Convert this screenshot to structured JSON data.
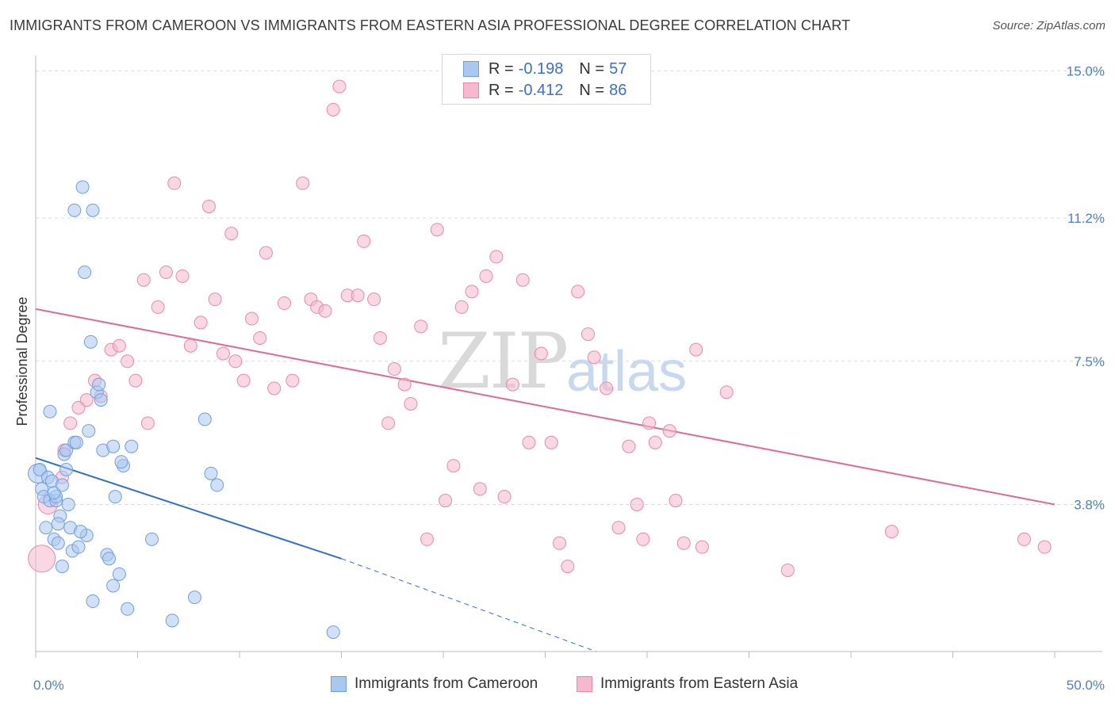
{
  "title": "IMMIGRANTS FROM CAMEROON VS IMMIGRANTS FROM EASTERN ASIA PROFESSIONAL DEGREE CORRELATION CHART",
  "source": "Source: ZipAtlas.com",
  "watermark": {
    "zip": "ZIP",
    "atlas": "atlas"
  },
  "legend": {
    "rows": [
      {
        "r_label": "R =",
        "r_value": "-0.198",
        "n_label": "N =",
        "n_value": "57"
      },
      {
        "r_label": "R =",
        "r_value": "-0.412",
        "n_label": "N =",
        "n_value": "86"
      }
    ]
  },
  "bottom_legend": {
    "cameroon": "Immigrants from Cameroon",
    "eastern_asia": "Immigrants from Eastern Asia"
  },
  "colors": {
    "cameroon_fill": "#a9c8f0",
    "cameroon_stroke": "#6f9fe0",
    "cameroon_line": "#2d6fd1",
    "eastern_asia_fill": "#f5b8cc",
    "eastern_asia_stroke": "#e98aa8",
    "eastern_asia_line": "#e06a94",
    "tick_label": "#4a7fd0"
  },
  "chart_data": {
    "type": "scatter",
    "title": "IMMIGRANTS FROM CAMEROON VS IMMIGRANTS FROM EASTERN ASIA PROFESSIONAL DEGREE CORRELATION CHART",
    "xlabel": "",
    "ylabel": "Professional Degree",
    "xlim": [
      0,
      50
    ],
    "ylim": [
      0,
      15.4
    ],
    "x_tick_labels": [
      "0.0%",
      "50.0%"
    ],
    "y_ticks": [
      3.8,
      7.5,
      11.2,
      15.0
    ],
    "y_tick_labels": [
      "3.8%",
      "7.5%",
      "11.2%",
      "15.0%"
    ],
    "grid": true,
    "legend_position": "top-center",
    "series": [
      {
        "name": "Immigrants from Cameroon",
        "r": -0.198,
        "n": 57,
        "trend": {
          "x0": 0,
          "y0": 5.0,
          "x1": 15,
          "y1": 2.4,
          "dashed_to_x": 27.5,
          "dashed_to_y": 0
        },
        "points": [
          [
            0.1,
            4.6,
            2
          ],
          [
            0.2,
            4.7,
            1
          ],
          [
            0.3,
            4.2,
            1
          ],
          [
            0.4,
            4.0,
            1
          ],
          [
            0.5,
            3.2,
            1
          ],
          [
            0.6,
            4.5,
            1
          ],
          [
            0.7,
            3.9,
            1
          ],
          [
            0.8,
            4.4,
            1
          ],
          [
            0.9,
            2.9,
            1
          ],
          [
            1.0,
            3.9,
            1
          ],
          [
            1.0,
            4.0,
            1
          ],
          [
            1.1,
            2.8,
            1
          ],
          [
            1.2,
            3.5,
            1
          ],
          [
            1.3,
            2.2,
            1
          ],
          [
            1.4,
            5.1,
            1
          ],
          [
            1.5,
            5.2,
            1
          ],
          [
            1.6,
            3.8,
            1
          ],
          [
            1.7,
            3.2,
            1
          ],
          [
            1.8,
            2.6,
            1
          ],
          [
            1.9,
            5.4,
            1
          ],
          [
            2.0,
            5.4,
            1
          ],
          [
            2.1,
            2.7,
            1
          ],
          [
            2.3,
            12.0,
            1
          ],
          [
            2.4,
            9.8,
            1
          ],
          [
            2.5,
            3.0,
            1
          ],
          [
            2.6,
            5.7,
            1
          ],
          [
            2.7,
            8.0,
            1
          ],
          [
            2.8,
            1.3,
            1
          ],
          [
            1.9,
            11.4,
            1
          ],
          [
            2.8,
            11.4,
            1
          ],
          [
            0.7,
            6.2,
            1
          ],
          [
            3.0,
            6.7,
            1
          ],
          [
            3.2,
            6.5,
            1
          ],
          [
            3.3,
            5.2,
            1
          ],
          [
            3.5,
            2.5,
            1
          ],
          [
            3.6,
            2.4,
            1
          ],
          [
            3.8,
            5.3,
            1
          ],
          [
            3.8,
            1.7,
            1
          ],
          [
            3.9,
            4.0,
            1
          ],
          [
            4.1,
            2.0,
            1
          ],
          [
            4.3,
            4.8,
            1
          ],
          [
            4.5,
            1.1,
            1
          ],
          [
            4.7,
            5.3,
            1
          ],
          [
            5.7,
            2.9,
            1
          ],
          [
            4.2,
            4.9,
            1
          ],
          [
            6.7,
            0.8,
            1
          ],
          [
            7.8,
            1.4,
            1
          ],
          [
            8.3,
            6.0,
            1
          ],
          [
            8.6,
            4.6,
            1
          ],
          [
            8.9,
            4.3,
            1
          ],
          [
            14.6,
            0.5,
            1
          ],
          [
            3.1,
            6.9,
            1
          ],
          [
            1.5,
            4.7,
            1
          ],
          [
            0.9,
            4.1,
            1
          ],
          [
            2.2,
            3.1,
            1
          ],
          [
            1.1,
            3.3,
            1
          ],
          [
            1.3,
            4.3,
            1
          ]
        ]
      },
      {
        "name": "Immigrants from Eastern Asia",
        "r": -0.412,
        "n": 86,
        "trend": {
          "x0": 0,
          "y0": 8.85,
          "x1": 50,
          "y1": 3.8
        },
        "points": [
          [
            0.3,
            2.4,
            3
          ],
          [
            0.6,
            3.8,
            2
          ],
          [
            1.3,
            4.5,
            1
          ],
          [
            1.4,
            5.2,
            1
          ],
          [
            1.7,
            5.9,
            1
          ],
          [
            2.1,
            6.3,
            1
          ],
          [
            2.5,
            6.5,
            1
          ],
          [
            2.9,
            7.0,
            1
          ],
          [
            3.2,
            6.6,
            1
          ],
          [
            3.7,
            7.8,
            1
          ],
          [
            4.1,
            7.9,
            1
          ],
          [
            4.5,
            7.5,
            1
          ],
          [
            4.9,
            7.0,
            1
          ],
          [
            5.3,
            9.6,
            1
          ],
          [
            5.5,
            5.9,
            1
          ],
          [
            6.0,
            8.9,
            1
          ],
          [
            6.4,
            9.8,
            1
          ],
          [
            6.8,
            12.1,
            1
          ],
          [
            7.2,
            9.7,
            1
          ],
          [
            7.6,
            7.9,
            1
          ],
          [
            8.1,
            8.5,
            1
          ],
          [
            8.5,
            11.5,
            1
          ],
          [
            8.8,
            9.1,
            1
          ],
          [
            9.2,
            7.7,
            1
          ],
          [
            9.6,
            10.8,
            1
          ],
          [
            9.8,
            7.5,
            1
          ],
          [
            10.2,
            7.0,
            1
          ],
          [
            10.6,
            8.6,
            1
          ],
          [
            11.0,
            8.1,
            1
          ],
          [
            11.3,
            10.3,
            1
          ],
          [
            11.7,
            6.8,
            1
          ],
          [
            12.2,
            9.0,
            1
          ],
          [
            12.6,
            7.0,
            1
          ],
          [
            13.1,
            12.1,
            1
          ],
          [
            13.5,
            9.1,
            1
          ],
          [
            13.8,
            8.9,
            1
          ],
          [
            14.2,
            8.8,
            1
          ],
          [
            14.6,
            14.0,
            1
          ],
          [
            14.9,
            14.6,
            1
          ],
          [
            15.3,
            9.2,
            1
          ],
          [
            15.8,
            9.2,
            1
          ],
          [
            16.1,
            10.6,
            1
          ],
          [
            16.6,
            9.1,
            1
          ],
          [
            16.9,
            8.1,
            1
          ],
          [
            17.3,
            5.9,
            1
          ],
          [
            17.6,
            7.3,
            1
          ],
          [
            18.1,
            6.9,
            1
          ],
          [
            18.4,
            6.4,
            1
          ],
          [
            18.9,
            8.4,
            1
          ],
          [
            19.2,
            2.9,
            1
          ],
          [
            19.7,
            10.9,
            1
          ],
          [
            20.1,
            3.9,
            1
          ],
          [
            20.5,
            4.8,
            1
          ],
          [
            20.9,
            8.9,
            1
          ],
          [
            21.4,
            9.3,
            1
          ],
          [
            21.8,
            4.2,
            1
          ],
          [
            22.1,
            9.7,
            1
          ],
          [
            22.6,
            10.2,
            1
          ],
          [
            23.0,
            4.0,
            1
          ],
          [
            23.4,
            6.9,
            1
          ],
          [
            23.9,
            9.6,
            1
          ],
          [
            24.2,
            5.4,
            1
          ],
          [
            24.8,
            7.7,
            1
          ],
          [
            25.3,
            5.4,
            1
          ],
          [
            25.7,
            2.8,
            1
          ],
          [
            26.1,
            2.2,
            1
          ],
          [
            26.6,
            9.3,
            1
          ],
          [
            27.1,
            8.2,
            1
          ],
          [
            27.4,
            7.6,
            1
          ],
          [
            28.0,
            6.8,
            1
          ],
          [
            28.6,
            3.2,
            1
          ],
          [
            29.1,
            5.3,
            1
          ],
          [
            29.5,
            3.8,
            1
          ],
          [
            29.8,
            2.9,
            1
          ],
          [
            30.1,
            5.9,
            1
          ],
          [
            30.4,
            5.4,
            1
          ],
          [
            31.1,
            5.7,
            1
          ],
          [
            31.4,
            3.9,
            1
          ],
          [
            31.8,
            2.8,
            1
          ],
          [
            32.4,
            7.8,
            1
          ],
          [
            32.7,
            2.7,
            1
          ],
          [
            33.9,
            6.7,
            1
          ],
          [
            36.9,
            2.1,
            1
          ],
          [
            42.0,
            3.1,
            1
          ],
          [
            48.5,
            2.9,
            1
          ],
          [
            49.5,
            2.7,
            1
          ]
        ]
      }
    ]
  }
}
